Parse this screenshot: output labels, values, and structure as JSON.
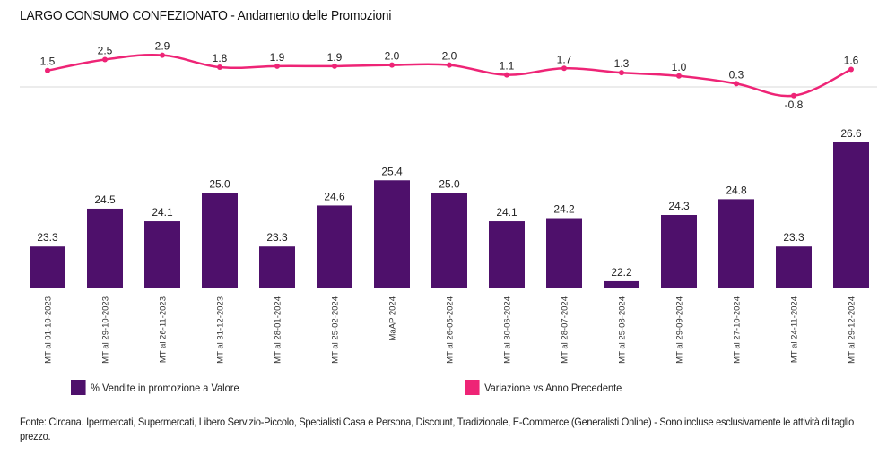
{
  "title": "LARGO CONSUMO CONFEZIONATO - Andamento delle Promozioni",
  "colors": {
    "bar": "#4e106b",
    "line": "#ee2476",
    "zero_line": "#e6e6e6"
  },
  "legend": {
    "bar_label": "% Vendite in promozione a Valore",
    "line_label": "Variazione vs Anno Precedente"
  },
  "footer": "Fonte: Circana. Ipermercati, Supermercati, Libero Servizio-Piccolo, Specialisti Casa e Persona, Discount, Tradizionale, E-Commerce (Generalisti Online) - Sono incluse esclusivamente le attività di taglio prezzo.",
  "chart_data": [
    {
      "type": "bar",
      "title": "LARGO CONSUMO CONFEZIONATO - Andamento delle Promozioni",
      "xlabel": "",
      "ylabel": "",
      "categories": [
        "MT al 01-10-2023",
        "MT al 29-10-2023",
        "MT al 26-11-2023",
        "MT al 31-12-2023",
        "MT al 28-01-2024",
        "MT al 25-02-2024",
        "MaAP 2024",
        "MT al 26-05-2024",
        "MT al 30-06-2024",
        "MT al 28-07-2024",
        "MT al 25-08-2024",
        "MT al 29-09-2024",
        "MT al 27-10-2024",
        "MT al 24-11-2024",
        "MT al 29-12-2024"
      ],
      "series": [
        {
          "name": "% Vendite in promozione a Valore",
          "values": [
            23.3,
            24.5,
            24.1,
            25.0,
            23.3,
            24.6,
            25.4,
            25.0,
            24.1,
            24.2,
            22.2,
            24.3,
            24.8,
            23.3,
            26.6
          ]
        }
      ],
      "ylim": [
        22.0,
        26.8
      ],
      "grid": false,
      "data_labels": true,
      "legend_position": "bottom"
    },
    {
      "type": "line",
      "categories": [
        "MT al 01-10-2023",
        "MT al 29-10-2023",
        "MT al 26-11-2023",
        "MT al 31-12-2023",
        "MT al 28-01-2024",
        "MT al 25-02-2024",
        "MaAP 2024",
        "MT al 26-05-2024",
        "MT al 30-06-2024",
        "MT al 28-07-2024",
        "MT al 25-08-2024",
        "MT al 29-09-2024",
        "MT al 27-10-2024",
        "MT al 24-11-2024",
        "MT al 29-12-2024"
      ],
      "series": [
        {
          "name": "Variazione vs Anno Precedente",
          "values": [
            1.5,
            2.5,
            2.9,
            1.8,
            1.9,
            1.9,
            2.0,
            2.0,
            1.1,
            1.7,
            1.3,
            1.0,
            0.3,
            -0.8,
            1.6
          ]
        }
      ],
      "ylim": [
        -0.8,
        2.9
      ],
      "zero_line": true,
      "smooth": true,
      "data_labels": true,
      "legend_position": "bottom"
    }
  ]
}
